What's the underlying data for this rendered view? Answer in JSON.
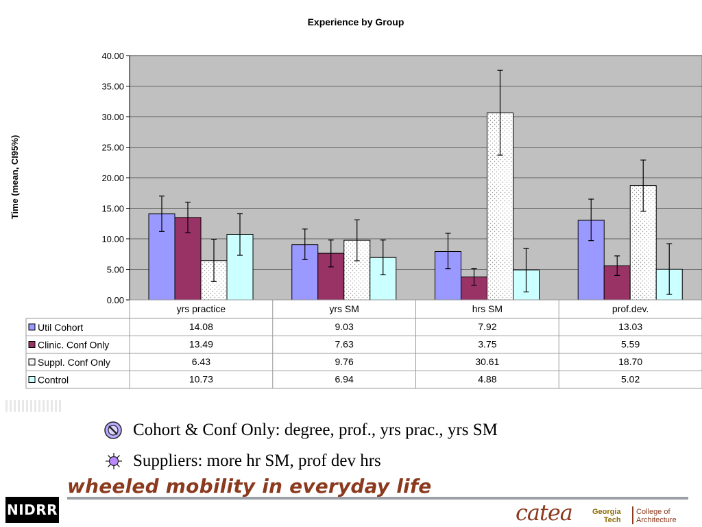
{
  "chart_data": {
    "type": "bar",
    "title": "Experience by Group",
    "ylabel": "Time (mean, CI95%)",
    "xlabel": "",
    "ylim": [
      0,
      40
    ],
    "yticks": [
      "0.00",
      "5.00",
      "10.00",
      "15.00",
      "20.00",
      "25.00",
      "30.00",
      "35.00",
      "40.00"
    ],
    "categories": [
      "yrs practice",
      "yrs SM",
      "hrs SM",
      "prof.dev."
    ],
    "grid": true,
    "legend": "table-left",
    "series": [
      {
        "name": "Util Cohort",
        "color": "#9999ff",
        "pattern": "solid",
        "values": [
          14.08,
          9.03,
          7.92,
          13.03
        ],
        "labels": [
          "14.08",
          "9.03",
          "7.92",
          "13.03"
        ],
        "err_low": [
          11.2,
          6.6,
          5.1,
          9.7
        ],
        "err_high": [
          17.0,
          11.6,
          10.9,
          16.5
        ]
      },
      {
        "name": "Clinic. Conf Only",
        "color": "#993366",
        "pattern": "solid",
        "values": [
          13.49,
          7.63,
          3.75,
          5.59
        ],
        "labels": [
          "13.49",
          "7.63",
          "3.75",
          "5.59"
        ],
        "err_low": [
          11.0,
          5.4,
          2.4,
          4.0
        ],
        "err_high": [
          16.0,
          9.8,
          5.1,
          7.2
        ]
      },
      {
        "name": "Suppl. Conf Only",
        "color": "#ffffff",
        "pattern": "dotted",
        "values": [
          6.43,
          9.76,
          30.61,
          18.7
        ],
        "labels": [
          "6.43",
          "9.76",
          "30.61",
          "18.70"
        ],
        "err_low": [
          3.0,
          6.4,
          23.7,
          14.5
        ],
        "err_high": [
          9.9,
          13.1,
          37.6,
          22.9
        ]
      },
      {
        "name": "Control",
        "color": "#ccffff",
        "pattern": "solid",
        "values": [
          10.73,
          6.94,
          4.88,
          5.02
        ],
        "labels": [
          "10.73",
          "6.94",
          "4.88",
          "5.02"
        ],
        "err_low": [
          7.3,
          4.1,
          1.3,
          0.9
        ],
        "err_high": [
          14.1,
          9.8,
          8.4,
          9.2
        ]
      }
    ]
  },
  "bullets": [
    {
      "icon": "no-entry-icon",
      "text": "Cohort & Conf Only: degree,  prof., yrs prac., yrs SM"
    },
    {
      "icon": "sun-burst-icon",
      "text": "Suppliers: more hr SM, prof dev hrs"
    }
  ],
  "footer": {
    "tagline": "wheeled mobility in everyday life",
    "nidrr_logo": "NIDRR",
    "catea_logo": "catea",
    "gt_line1": "Georgia",
    "gt_line2": "Tech",
    "coa_line1": "College of",
    "coa_line2": "Architecture"
  }
}
